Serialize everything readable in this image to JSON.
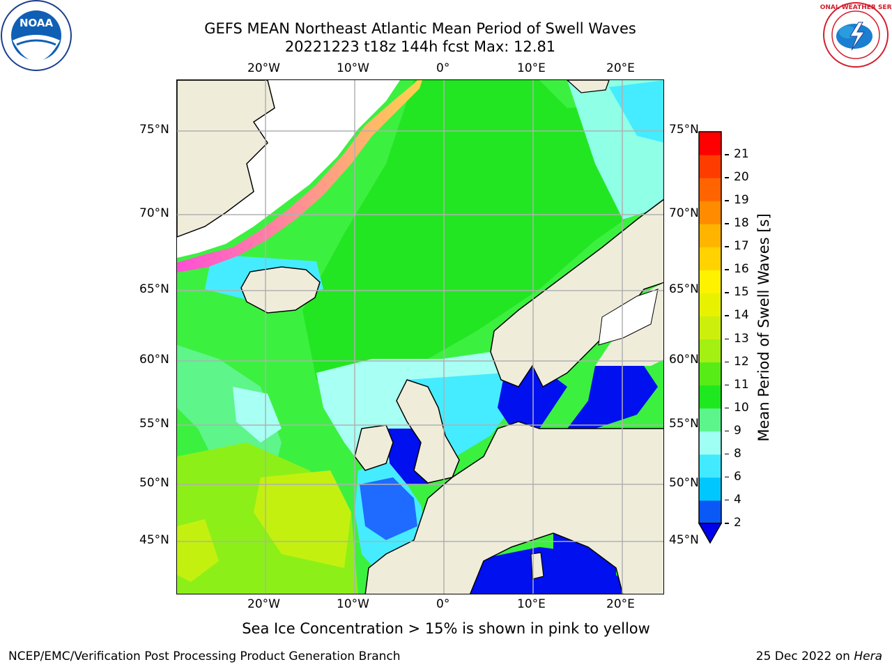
{
  "title": {
    "line1": "GEFS MEAN Northeast Atlantic Mean Period of Swell Waves",
    "line2": "20221223 t18z 144h fcst   Max: 12.81"
  },
  "axes": {
    "lon_labels": [
      "20°W",
      "10°W",
      "0°",
      "10°E",
      "20°E"
    ],
    "lat_labels": [
      "75°N",
      "70°N",
      "65°N",
      "60°N",
      "55°N",
      "50°N",
      "45°N"
    ]
  },
  "colorbar": {
    "label": "Mean Period of Swell Waves [s]",
    "ticks": [
      "2",
      "4",
      "6",
      "8",
      "9",
      "10",
      "11",
      "12",
      "13",
      "14",
      "15",
      "16",
      "17",
      "18",
      "19",
      "20",
      "21"
    ],
    "colors": [
      "#0a58f5",
      "#00c8ff",
      "#42eaff",
      "#a0fff4",
      "#5cf58c",
      "#1ee81e",
      "#58ec16",
      "#a4f012",
      "#ccf00c",
      "#e8f200",
      "#fff200",
      "#ffd200",
      "#ffb400",
      "#ff8c00",
      "#ff6400",
      "#ff3c00",
      "#ff0000"
    ],
    "extend_color": "#0000ee"
  },
  "note": "Sea Ice Concentration > 15% is shown in pink to yellow",
  "footer": {
    "left": "NCEP/EMC/Verification Post Processing Product Generation Branch",
    "right_prefix": "25 Dec 2022 on ",
    "right_host": "Hera"
  },
  "logos": {
    "left_text": "NOAA",
    "right_text": "NATIONAL WEATHER SERVICE"
  }
}
